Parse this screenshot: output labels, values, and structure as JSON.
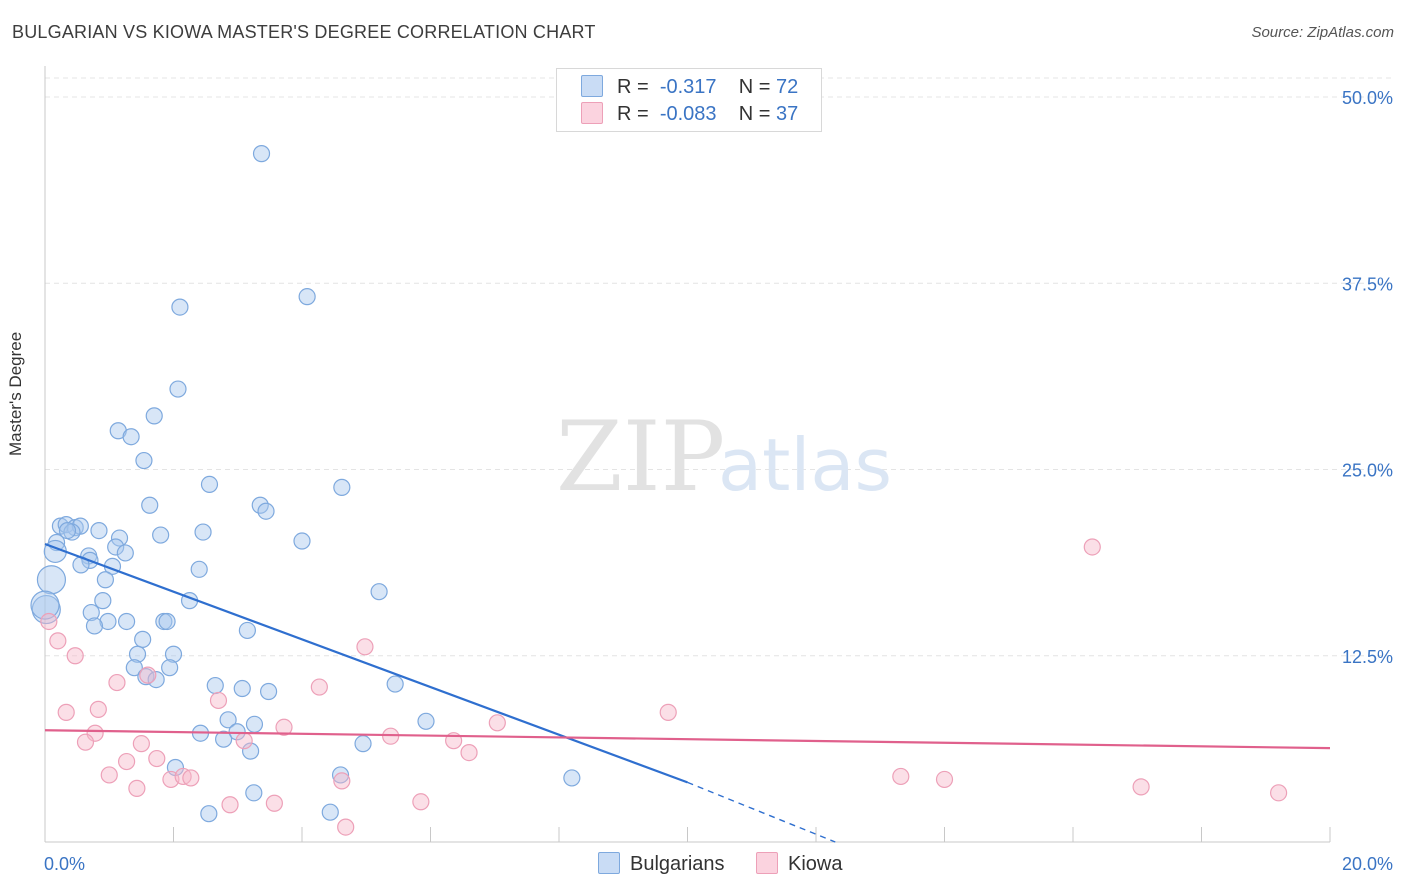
{
  "header": {
    "title": "BULGARIAN VS KIOWA MASTER'S DEGREE CORRELATION CHART",
    "source": "Source: ZipAtlas.com"
  },
  "watermark": {
    "zip": "ZIP",
    "atlas": "atlas"
  },
  "legend_top": [
    {
      "r_label": "R =",
      "r_value": "-0.317",
      "n_label": "N =",
      "n_value": "72",
      "color": "#a9c8ee"
    },
    {
      "r_label": "R =",
      "r_value": "-0.083",
      "n_label": "N =",
      "n_value": "37",
      "color": "#f6b8ca"
    }
  ],
  "legend_bottom": [
    {
      "label": "Bulgarians",
      "color": "#a9c8ee"
    },
    {
      "label": "Kiowa",
      "color": "#f6b8ca"
    }
  ],
  "chart_data": {
    "type": "scatter",
    "title": "BULGARIAN VS KIOWA MASTER'S DEGREE CORRELATION CHART",
    "xlabel": "",
    "ylabel": "Master's Degree",
    "xlim": [
      0,
      20
    ],
    "ylim": [
      0,
      50
    ],
    "x_tick_labels": [
      "0.0%",
      "20.0%"
    ],
    "y_ticks": [
      12.5,
      25.0,
      37.5,
      50.0
    ],
    "y_tick_labels": [
      "12.5%",
      "25.0%",
      "37.5%",
      "50.0%"
    ],
    "grid": true,
    "legend_placement": "top-center and bottom",
    "series": [
      {
        "name": "Bulgarians",
        "color": "#4a86d6",
        "fill": "#a9c8ee",
        "r": -0.317,
        "n": 72,
        "trend": {
          "x": [
            0,
            10
          ],
          "y": [
            20.0,
            4.0
          ],
          "dashed_to": [
            12.3,
            0.0
          ]
        },
        "points": [
          [
            3.37,
            46.2
          ],
          [
            2.1,
            35.9
          ],
          [
            4.08,
            36.6
          ],
          [
            2.07,
            30.4
          ],
          [
            1.7,
            28.6
          ],
          [
            1.14,
            27.6
          ],
          [
            1.34,
            27.2
          ],
          [
            1.54,
            25.6
          ],
          [
            2.56,
            24.0
          ],
          [
            4.62,
            23.8
          ],
          [
            1.63,
            22.6
          ],
          [
            3.35,
            22.6
          ],
          [
            3.44,
            22.2
          ],
          [
            0.24,
            21.2
          ],
          [
            0.33,
            21.3
          ],
          [
            0.47,
            21.1
          ],
          [
            0.55,
            21.2
          ],
          [
            0.42,
            20.8
          ],
          [
            0.35,
            20.9
          ],
          [
            0.84,
            20.9
          ],
          [
            2.46,
            20.8
          ],
          [
            1.8,
            20.6
          ],
          [
            1.16,
            20.4
          ],
          [
            4.0,
            20.2
          ],
          [
            0.18,
            20.1
          ],
          [
            1.1,
            19.8
          ],
          [
            0.16,
            19.5
          ],
          [
            1.25,
            19.4
          ],
          [
            0.68,
            19.2
          ],
          [
            0.7,
            18.9
          ],
          [
            0.56,
            18.6
          ],
          [
            1.05,
            18.5
          ],
          [
            2.4,
            18.3
          ],
          [
            0.94,
            17.6
          ],
          [
            0.1,
            17.6
          ],
          [
            5.2,
            16.8
          ],
          [
            0.9,
            16.2
          ],
          [
            2.25,
            16.2
          ],
          [
            0.02,
            15.6
          ],
          [
            0.72,
            15.4
          ],
          [
            1.27,
            14.8
          ],
          [
            1.85,
            14.8
          ],
          [
            1.9,
            14.8
          ],
          [
            0.98,
            14.8
          ],
          [
            0.77,
            14.5
          ],
          [
            3.15,
            14.2
          ],
          [
            1.52,
            13.6
          ],
          [
            1.44,
            12.6
          ],
          [
            2.0,
            12.6
          ],
          [
            1.39,
            11.7
          ],
          [
            1.94,
            11.7
          ],
          [
            1.57,
            11.1
          ],
          [
            1.73,
            10.9
          ],
          [
            2.65,
            10.5
          ],
          [
            3.07,
            10.3
          ],
          [
            3.48,
            10.1
          ],
          [
            5.45,
            10.6
          ],
          [
            2.85,
            8.2
          ],
          [
            3.26,
            7.9
          ],
          [
            5.93,
            8.1
          ],
          [
            2.99,
            7.4
          ],
          [
            2.42,
            7.3
          ],
          [
            2.78,
            6.9
          ],
          [
            4.95,
            6.6
          ],
          [
            3.2,
            6.1
          ],
          [
            2.03,
            5.0
          ],
          [
            4.6,
            4.5
          ],
          [
            8.2,
            4.3
          ],
          [
            3.25,
            3.3
          ],
          [
            4.44,
            2.0
          ],
          [
            2.55,
            1.9
          ],
          [
            0.0,
            15.9
          ]
        ]
      },
      {
        "name": "Kiowa",
        "color": "#e86b93",
        "fill": "#f6b8ca",
        "r": -0.083,
        "n": 37,
        "trend": {
          "x": [
            0,
            20
          ],
          "y": [
            7.5,
            6.3
          ]
        },
        "points": [
          [
            0.06,
            14.8
          ],
          [
            0.2,
            13.5
          ],
          [
            0.47,
            12.5
          ],
          [
            4.98,
            13.1
          ],
          [
            16.3,
            19.8
          ],
          [
            1.12,
            10.7
          ],
          [
            4.27,
            10.4
          ],
          [
            1.6,
            11.2
          ],
          [
            2.7,
            9.5
          ],
          [
            0.33,
            8.7
          ],
          [
            0.83,
            8.9
          ],
          [
            9.7,
            8.7
          ],
          [
            7.04,
            8.0
          ],
          [
            3.72,
            7.7
          ],
          [
            0.78,
            7.3
          ],
          [
            5.38,
            7.1
          ],
          [
            0.63,
            6.7
          ],
          [
            1.5,
            6.6
          ],
          [
            6.36,
            6.8
          ],
          [
            6.6,
            6.0
          ],
          [
            1.27,
            5.4
          ],
          [
            1.74,
            5.6
          ],
          [
            1.0,
            4.5
          ],
          [
            1.96,
            4.2
          ],
          [
            2.15,
            4.4
          ],
          [
            2.27,
            4.3
          ],
          [
            3.1,
            6.8
          ],
          [
            4.62,
            4.1
          ],
          [
            13.32,
            4.4
          ],
          [
            14.0,
            4.2
          ],
          [
            1.43,
            3.6
          ],
          [
            17.06,
            3.7
          ],
          [
            19.2,
            3.3
          ],
          [
            2.88,
            2.5
          ],
          [
            3.57,
            2.6
          ],
          [
            5.85,
            2.7
          ],
          [
            4.68,
            1.0
          ]
        ]
      }
    ]
  }
}
